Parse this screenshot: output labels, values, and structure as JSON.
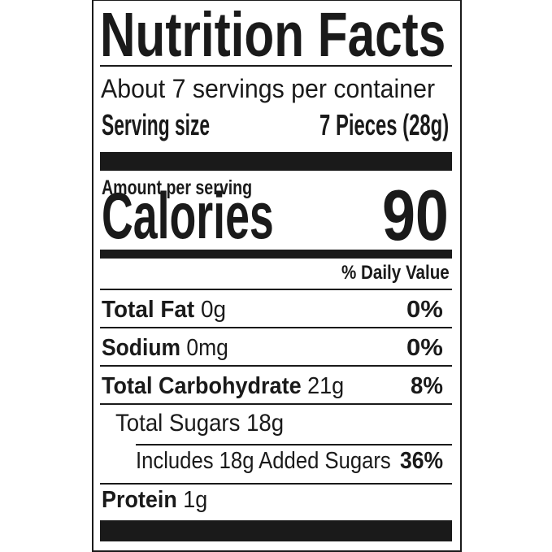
{
  "title": "Nutrition Facts",
  "servings_per_container": "About 7 servings per container",
  "serving_size": {
    "label": "Serving size",
    "value": "7 Pieces (28g)"
  },
  "amount_per_serving": "Amount per serving",
  "calories": {
    "label": "Calories",
    "value": "90"
  },
  "daily_value_header": "% Daily Value",
  "nutrients": [
    {
      "name": "Total Fat",
      "amount": "0g",
      "dv": "0%"
    },
    {
      "name": "Sodium",
      "amount": "0mg",
      "dv": "0%"
    },
    {
      "name": "Total Carbohydrate",
      "amount": "21g",
      "dv": "8%"
    },
    {
      "name": "Total Sugars 18g"
    },
    {
      "name": "Includes 18g Added Sugars",
      "dv": "36%"
    },
    {
      "name": "Protein",
      "amount": "1g"
    }
  ]
}
